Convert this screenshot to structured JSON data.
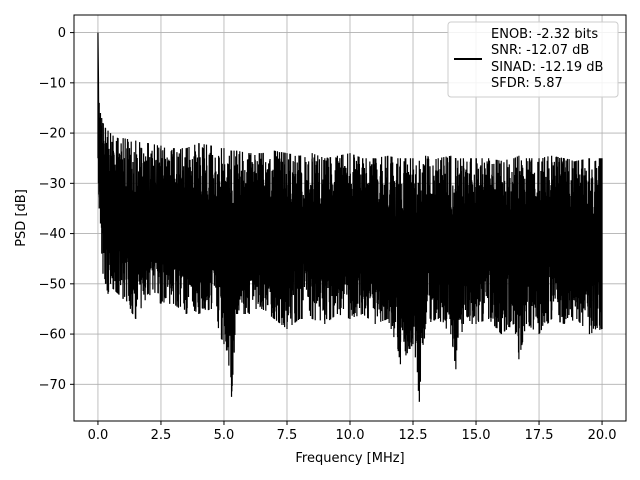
{
  "chart_data": {
    "type": "line",
    "title": "",
    "xlabel": "Frequency [MHz]",
    "ylabel": "PSD [dB]",
    "xlim": [
      -0.95,
      20.95
    ],
    "ylim": [
      -77.3,
      3.5
    ],
    "xticks": [
      0.0,
      2.5,
      5.0,
      7.5,
      10.0,
      12.5,
      15.0,
      17.5,
      20.0
    ],
    "xtick_labels": [
      "0.0",
      "2.5",
      "5.0",
      "7.5",
      "10.0",
      "12.5",
      "15.0",
      "17.5",
      "20.0"
    ],
    "yticks": [
      0,
      -10,
      -20,
      -30,
      -40,
      -50,
      -60,
      -70
    ],
    "ytick_labels": [
      "0",
      "−10",
      "−20",
      "−30",
      "−40",
      "−50",
      "−60",
      "−70"
    ],
    "grid": true,
    "legend_position": "top-right",
    "legend": [
      "ENOB: -2.32 bits",
      "SNR: -12.07 dB",
      "SINAD: -12.19 dB",
      "SFDR: 5.87"
    ],
    "series": [
      {
        "color": "#000000",
        "x": [
          0.0,
          0.02,
          0.05,
          0.1,
          0.15,
          0.2,
          0.3,
          0.4,
          0.5,
          0.6,
          0.8,
          1.0,
          1.5,
          2.0,
          2.5,
          3.0,
          3.5,
          4.0,
          4.5,
          4.9,
          5.0,
          5.3,
          5.5,
          6.0,
          6.5,
          7.0,
          7.5,
          8.0,
          8.5,
          9.0,
          9.5,
          10.0,
          10.5,
          11.0,
          11.5,
          11.9,
          12.0,
          12.5,
          12.75,
          13.0,
          13.5,
          14.0,
          14.2,
          14.5,
          15.0,
          15.5,
          16.0,
          16.5,
          16.7,
          17.0,
          17.5,
          18.0,
          18.5,
          19.0,
          19.5,
          20.0
        ],
        "upper": [
          0.0,
          -9.0,
          -14.0,
          -16.0,
          -17.0,
          -18.0,
          -19.0,
          -19.5,
          -20.0,
          -20.5,
          -21.0,
          -21.0,
          -21.5,
          -22.0,
          -22.5,
          -23.0,
          -23.0,
          -22.0,
          -22.5,
          -23.0,
          -23.0,
          -23.5,
          -23.5,
          -24.0,
          -24.0,
          -23.5,
          -24.0,
          -24.5,
          -24.0,
          -25.0,
          -24.5,
          -24.0,
          -25.0,
          -25.0,
          -24.5,
          -25.0,
          -25.0,
          -25.0,
          -25.5,
          -24.5,
          -25.0,
          -24.5,
          -25.0,
          -25.0,
          -25.0,
          -25.0,
          -25.5,
          -25.0,
          -24.5,
          -25.0,
          -25.0,
          -24.5,
          -25.0,
          -25.5,
          -25.0,
          -25.0
        ],
        "lower": [
          -25.0,
          -30.0,
          -35.0,
          -38.0,
          -44.0,
          -48.0,
          -50.0,
          -52.0,
          -50.0,
          -51.0,
          -52.0,
          -53.0,
          -57.0,
          -52.0,
          -54.0,
          -54.0,
          -56.0,
          -56.0,
          -55.0,
          -61.0,
          -62.0,
          -72.5,
          -56.0,
          -56.0,
          -55.0,
          -57.0,
          -59.0,
          -57.0,
          -57.0,
          -58.0,
          -56.0,
          -57.0,
          -56.0,
          -58.0,
          -57.0,
          -63.0,
          -66.0,
          -62.0,
          -73.5,
          -58.0,
          -57.0,
          -60.0,
          -67.0,
          -58.0,
          -58.0,
          -57.0,
          -60.0,
          -58.0,
          -65.0,
          -58.0,
          -60.0,
          -57.0,
          -58.0,
          -57.0,
          -60.0,
          -59.0
        ]
      }
    ]
  }
}
